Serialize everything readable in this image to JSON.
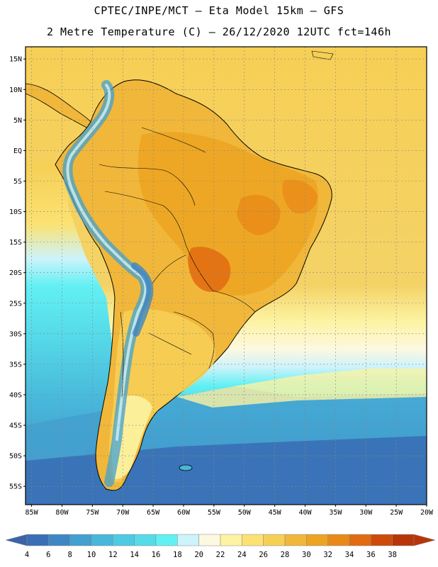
{
  "title": {
    "line1": "CPTEC/INPE/MCT –  Eta Model 15km – GFS",
    "line2": "2 Metre Temperature (C) – 26/12/2020 12UTC fct=146h"
  },
  "map_data": {
    "type": "heatmap",
    "variable": "2 Metre Temperature",
    "units": "C",
    "lon_range": [
      -86,
      -20
    ],
    "lat_range": [
      -58,
      17
    ],
    "lat_ticks": [
      {
        "value": 15,
        "label": "15N"
      },
      {
        "value": 10,
        "label": "10N"
      },
      {
        "value": 5,
        "label": "5N"
      },
      {
        "value": 0,
        "label": "EQ"
      },
      {
        "value": -5,
        "label": "5S"
      },
      {
        "value": -10,
        "label": "10S"
      },
      {
        "value": -15,
        "label": "15S"
      },
      {
        "value": -20,
        "label": "20S"
      },
      {
        "value": -25,
        "label": "25S"
      },
      {
        "value": -30,
        "label": "30S"
      },
      {
        "value": -35,
        "label": "35S"
      },
      {
        "value": -40,
        "label": "40S"
      },
      {
        "value": -45,
        "label": "45S"
      },
      {
        "value": -50,
        "label": "50S"
      },
      {
        "value": -55,
        "label": "55S"
      }
    ],
    "lon_ticks": [
      {
        "value": -85,
        "label": "85W"
      },
      {
        "value": -80,
        "label": "80W"
      },
      {
        "value": -75,
        "label": "75W"
      },
      {
        "value": -70,
        "label": "70W"
      },
      {
        "value": -65,
        "label": "65W"
      },
      {
        "value": -60,
        "label": "60W"
      },
      {
        "value": -55,
        "label": "55W"
      },
      {
        "value": -50,
        "label": "50W"
      },
      {
        "value": -45,
        "label": "45W"
      },
      {
        "value": -40,
        "label": "40W"
      },
      {
        "value": -35,
        "label": "35W"
      },
      {
        "value": -30,
        "label": "30W"
      },
      {
        "value": -25,
        "label": "25W"
      },
      {
        "value": -20,
        "label": "20W"
      }
    ],
    "grid": true
  },
  "colorbar": {
    "levels": [
      "4",
      "6",
      "8",
      "10",
      "12",
      "14",
      "16",
      "18",
      "20",
      "22",
      "24",
      "26",
      "28",
      "30",
      "32",
      "34",
      "36",
      "38"
    ],
    "colors": [
      "#3a6fb5",
      "#3f86c4",
      "#43a0cf",
      "#48b7da",
      "#4ecbe2",
      "#56dbe9",
      "#62f0f3",
      "#cdf3fb",
      "#fdf8e0",
      "#fdf3a2",
      "#fbe273",
      "#f6cf55",
      "#f1b73a",
      "#eca522",
      "#e98a18",
      "#e26a10",
      "#cd4a0a",
      "#b8350a"
    ],
    "low_color": "#3a63aa",
    "high_color": "#b8350a"
  }
}
